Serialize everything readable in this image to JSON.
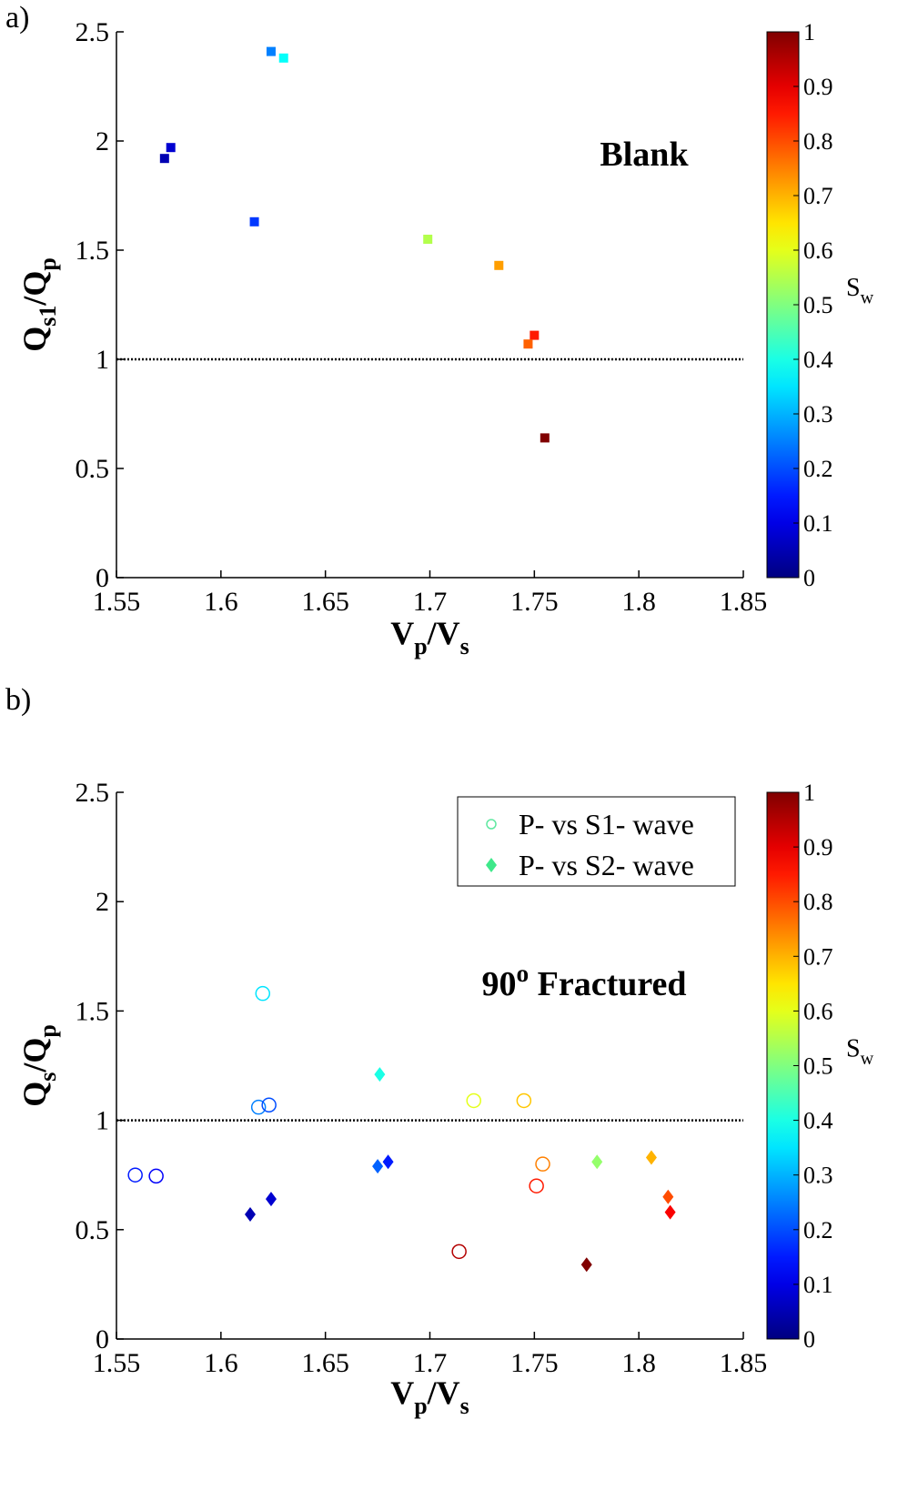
{
  "chart_data": [
    {
      "type": "scatter",
      "panel_label": "a)",
      "annotation": [
        {
          "text": "Blank"
        }
      ],
      "xlabel": [
        {
          "text": "V"
        },
        {
          "text": "p",
          "sub": true
        },
        {
          "text": "/V"
        },
        {
          "text": "s",
          "sub": true
        }
      ],
      "ylabel": [
        {
          "text": "Q"
        },
        {
          "text": "s1",
          "sub": true
        },
        {
          "text": "/Q"
        },
        {
          "text": "p",
          "sub": true
        }
      ],
      "xlim": [
        1.55,
        1.85
      ],
      "xticks": [
        1.55,
        1.6,
        1.65,
        1.7,
        1.75,
        1.8,
        1.85
      ],
      "ylim": [
        0,
        2.5
      ],
      "yticks": [
        0,
        0.5,
        1,
        1.5,
        2,
        2.5
      ],
      "hline": 1,
      "colormap": "jet",
      "clim": [
        0,
        1
      ],
      "cticks": [
        0,
        0.1,
        0.2,
        0.3,
        0.4,
        0.5,
        0.6,
        0.7,
        0.8,
        0.9,
        1
      ],
      "clabel": [
        {
          "text": "S"
        },
        {
          "text": "w",
          "sub": true
        }
      ],
      "series": [
        {
          "marker": "square",
          "x": [
            1.573,
            1.576,
            1.616,
            1.624,
            1.63,
            1.699,
            1.733,
            1.75,
            1.747,
            1.755
          ],
          "y": [
            1.92,
            1.97,
            1.63,
            2.41,
            2.38,
            1.55,
            1.43,
            1.11,
            1.07,
            0.64
          ],
          "sw": [
            0.05,
            0.08,
            0.18,
            0.25,
            0.38,
            0.55,
            0.72,
            0.85,
            0.78,
            1.0
          ]
        }
      ]
    },
    {
      "type": "scatter",
      "panel_label": "b)",
      "annotation": [
        {
          "text": "90"
        },
        {
          "text": "o",
          "sup": true
        },
        {
          "text": " Fractured"
        }
      ],
      "xlabel": [
        {
          "text": "V"
        },
        {
          "text": "p",
          "sub": true
        },
        {
          "text": "/V"
        },
        {
          "text": "s",
          "sub": true
        }
      ],
      "ylabel": [
        {
          "text": "Q"
        },
        {
          "text": "s",
          "sub": true
        },
        {
          "text": "/Q"
        },
        {
          "text": "p",
          "sub": true
        }
      ],
      "xlim": [
        1.55,
        1.85
      ],
      "xticks": [
        1.55,
        1.6,
        1.65,
        1.7,
        1.75,
        1.8,
        1.85
      ],
      "ylim": [
        0,
        2.5
      ],
      "yticks": [
        0,
        0.5,
        1,
        1.5,
        2,
        2.5
      ],
      "hline": 1,
      "colormap": "jet",
      "clim": [
        0,
        1
      ],
      "cticks": [
        0,
        0.1,
        0.2,
        0.3,
        0.4,
        0.5,
        0.6,
        0.7,
        0.8,
        0.9,
        1
      ],
      "clabel": [
        {
          "text": "S"
        },
        {
          "text": "w",
          "sub": true
        }
      ],
      "legend": "upper right",
      "series": [
        {
          "name": "P- vs S1- wave",
          "marker": "circle",
          "legend_color": "#5fe8a0",
          "x": [
            1.559,
            1.569,
            1.62,
            1.618,
            1.623,
            1.721,
            1.745,
            1.754,
            1.751,
            1.714
          ],
          "y": [
            0.75,
            0.745,
            1.58,
            1.06,
            1.07,
            1.09,
            1.09,
            0.8,
            0.7,
            0.4
          ],
          "sw": [
            0.15,
            0.12,
            0.35,
            0.25,
            0.2,
            0.6,
            0.68,
            0.75,
            0.85,
            0.95
          ]
        },
        {
          "name": "P- vs S2- wave",
          "marker": "diamond",
          "legend_color": "#3ee88a",
          "x": [
            1.614,
            1.624,
            1.676,
            1.675,
            1.68,
            1.78,
            1.806,
            1.814,
            1.815,
            1.775
          ],
          "y": [
            0.57,
            0.64,
            1.21,
            0.79,
            0.81,
            0.81,
            0.83,
            0.65,
            0.58,
            0.34
          ],
          "sw": [
            0.05,
            0.08,
            0.4,
            0.22,
            0.15,
            0.52,
            0.7,
            0.8,
            0.88,
            1.0
          ]
        }
      ]
    }
  ]
}
